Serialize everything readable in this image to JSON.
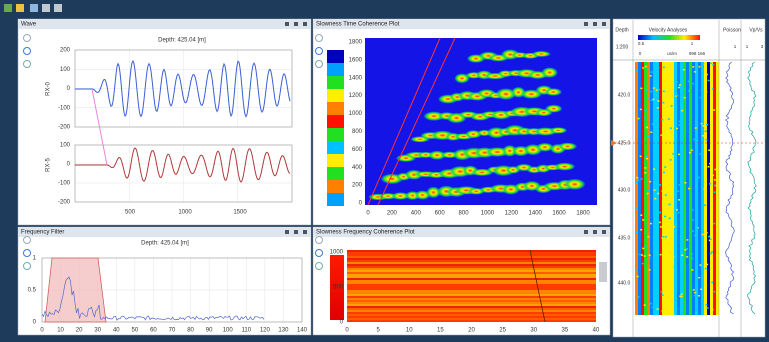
{
  "wave": {
    "title": "Wave",
    "depth": "Depth: 425.04 [m]",
    "upper": {
      "axis_label": "RX-0",
      "yticks": [
        "200",
        "100",
        "0",
        "-100",
        "-200"
      ]
    },
    "lower": {
      "axis_label": "RX-5",
      "yticks": [
        "100",
        "0",
        "-100",
        "-200"
      ]
    },
    "xticks": [
      "500",
      "1000",
      "1500"
    ]
  },
  "stc": {
    "title": "Slowness Time Coherence Plot",
    "depth": "Depth: 425.04 [m]",
    "yticks": [
      "1800",
      "1600",
      "1400",
      "1200",
      "1000",
      "800",
      "600",
      "400",
      "200",
      "0"
    ],
    "xticks": [
      "0",
      "200",
      "400",
      "600",
      "800",
      "1000",
      "1200",
      "1400",
      "1600",
      "1800"
    ]
  },
  "velocity": {
    "headers": [
      "Depth",
      "Velocity Analyses",
      "Poisson",
      "Vp/Vs"
    ],
    "scale": "1:200",
    "scale_labels": [
      "0.5",
      "1",
      "0",
      "us/m",
      "998 166",
      "1",
      "1",
      "3"
    ],
    "depths": [
      "420.0",
      "425.0",
      "430.0",
      "435.0",
      "440.0"
    ]
  },
  "freq_filter": {
    "title": "Frequency Filter",
    "depth": "Depth: 425.04 [m]",
    "yticks": [
      "1",
      "0.5",
      "0"
    ],
    "xticks": [
      "0",
      "10",
      "20",
      "30",
      "40",
      "50",
      "60",
      "70",
      "80",
      "90",
      "100",
      "110",
      "120",
      "130",
      "140"
    ]
  },
  "sfc": {
    "title": "Slowness Frequency Coherence Plot",
    "depth": "Depth: 425.04 [m]",
    "yticks": [
      "1000",
      "500",
      "0"
    ],
    "xticks": [
      "0",
      "5",
      "10",
      "15",
      "20",
      "25",
      "30",
      "35",
      "40"
    ]
  }
}
